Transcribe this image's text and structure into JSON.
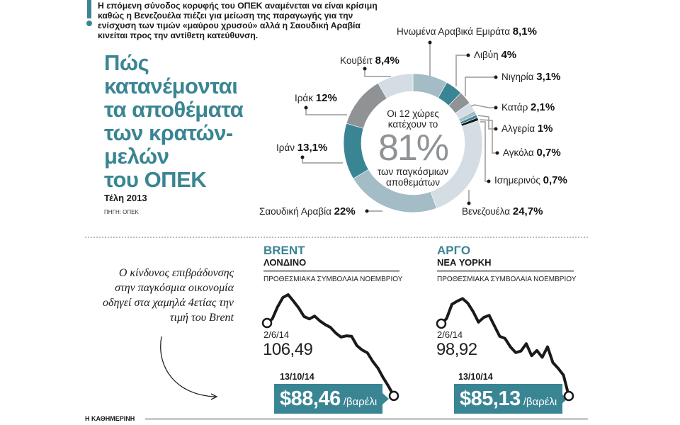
{
  "intro": "Η επόμενη σύνοδος κορυφής του ΟΠΕΚ αναμένεται να είναι κρίσιμη καθώς η Βενεζουέλα πιέζει για μείωση της παραγωγής για την ενίσχυση των τιμών «μαύρου χρυσού» αλλά η Σαουδική Αραβία κινείται προς την αντίθετη κατεύθυνση.",
  "title_lines": [
    "Πώς",
    "κατανέμονται",
    "τα αποθέματα",
    "των κρατών-",
    "μελών",
    "του ΟΠΕΚ"
  ],
  "period": "Τέλη 2013",
  "source": "ΠΗΓΗ: ΟΠΕΚ",
  "center": {
    "line1": "Οι 12 χώρες",
    "line2": "κατέχουν το",
    "big": "81%",
    "line3": "των παγκόσμιων",
    "line4": "αποθεμάτων"
  },
  "note": "Ο κίνδυνος επιβράδυνσης στην παγκόσμια οικονομία οδηγεί στα χαμηλά 4ετίας την τιμή του Brent",
  "footer": "Η ΚΑΘΗΜΕΡΙΝΗ",
  "colors": {
    "accent": "#3a8593",
    "very_light": "#d3dde3",
    "light_blue": "#a3bcc6",
    "teal": "#3a8593",
    "grey": "#8f9396",
    "black": "#1a1a1a"
  },
  "chart_data": [
    {
      "type": "pie",
      "donut": true,
      "categories": [
        "Ηνωμένα Αραβικά Εμιράτα",
        "Λιβύη",
        "Νιγηρία",
        "Κατάρ",
        "Αλγερία",
        "Αγκόλα",
        "Ισημερινός",
        "Βενεζουέλα",
        "Σαουδική Αραβία",
        "Ιράν",
        "Ιράκ",
        "Κουβέιτ"
      ],
      "values": [
        8.1,
        4,
        3.1,
        2.1,
        1,
        0.7,
        0.7,
        24.7,
        22,
        13.1,
        12,
        8.4
      ],
      "value_labels": [
        "8,1%",
        "4%",
        "3,1%",
        "2,1%",
        "1%",
        "0,7%",
        "0,7%",
        "24,7%",
        "22%",
        "13,1%",
        "12%",
        "8,4%"
      ],
      "colors": [
        "#a3bcc6",
        "#3a8593",
        "#8f9396",
        "#d3dde3",
        "#a3bcc6",
        "#3a8593",
        "#1a1a1a",
        "#d3dde3",
        "#a3bcc6",
        "#3a8593",
        "#8f9396",
        "#d3dde3"
      ]
    },
    {
      "type": "line",
      "market": "BRENT",
      "city": "ΛΟΝΔΙΝΟ",
      "subtitle": "ΠΡΟΘΕΣΜΙΑΚΑ ΣΥΜΒΟΛΑΙΑ ΝΟΕΜΒΡΙΟΥ",
      "start_date": "2/6/14",
      "start_value": "106,49",
      "end_date": "13/10/14",
      "end_value": "$88,46",
      "unit": "/βαρέλι",
      "values": [
        106.49,
        107.5,
        110.5,
        112.8,
        113.5,
        111.9,
        110.2,
        108.1,
        107.5,
        108.2,
        107.0,
        106.1,
        105.4,
        104.0,
        103.0,
        103.3,
        103.2,
        100.9,
        99.8,
        99.1,
        97.0,
        95.3,
        92.9,
        90.8,
        88.46
      ],
      "ylim": [
        86.5,
        116.3
      ]
    },
    {
      "type": "line",
      "market": "ΑΡΓΟ",
      "city": "ΝΕΑ ΥΟΡΚΗ",
      "subtitle": "ΠΡΟΘΕΣΜΙΑΚΑ ΣΥΜΒΟΛΑΙΑ ΝΟΕΜΒΡΙΟΥ",
      "start_date": "2/6/14",
      "start_value": "98,92",
      "end_date": "13/10/14",
      "end_value": "$85,13",
      "unit": "/βαρέλι",
      "values": [
        98.92,
        99.9,
        102.6,
        103.2,
        103.7,
        102.8,
        101.2,
        99.2,
        100.1,
        100.5,
        98.5,
        96.5,
        96.1,
        94.5,
        93.4,
        93.7,
        95.1,
        92.8,
        93.8,
        92.5,
        94.5,
        91.5,
        90.4,
        89.1,
        85.13
      ],
      "ylim": [
        83.65,
        106.6
      ]
    }
  ]
}
